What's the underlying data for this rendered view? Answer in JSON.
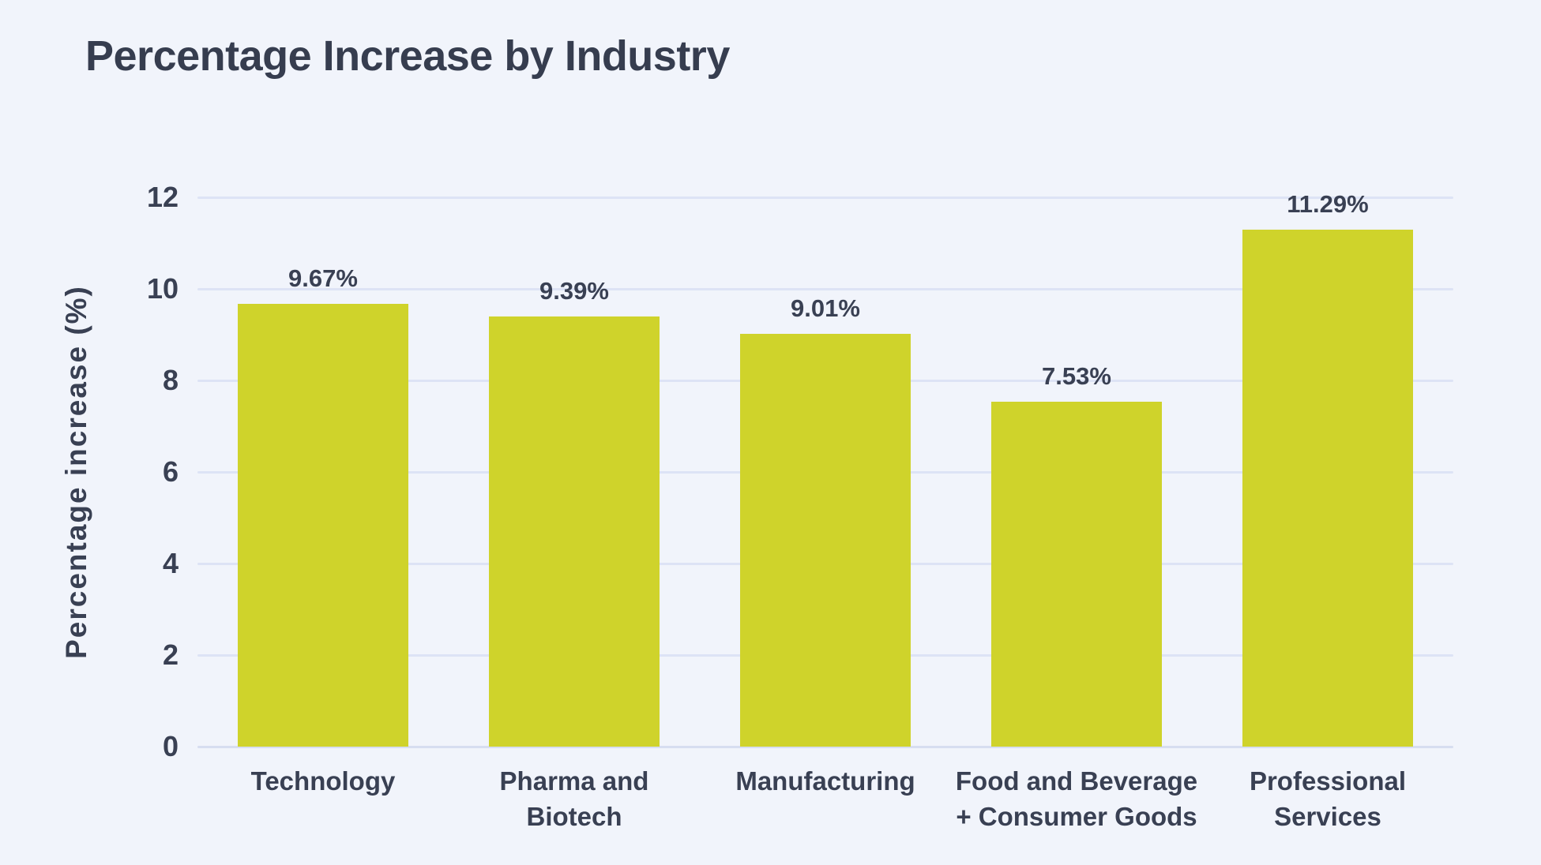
{
  "page": {
    "background_color": "#F1F4FB",
    "text_color": "#394053",
    "title_color": "#363D4F"
  },
  "chart_data": {
    "type": "bar",
    "title": "Percentage Increase by Industry",
    "xlabel": "",
    "ylabel": "Percentage increase (%)",
    "categories": [
      "Technology",
      "Pharma and Biotech",
      "Manufacturing",
      "Food and Beverage\n+ Consumer Goods",
      "Professional\nServices"
    ],
    "values": [
      9.67,
      9.39,
      9.01,
      7.53,
      11.29
    ],
    "value_labels": [
      "9.67%",
      "9.39%",
      "9.01%",
      "7.53%",
      "11.29%"
    ],
    "ylim": [
      0,
      12
    ],
    "yticks": [
      0,
      2,
      4,
      6,
      8,
      10,
      12
    ],
    "grid": "horizontal-on",
    "legend": "none",
    "bar_color": "#CFD32B",
    "gridline_color": "#DDE3F5",
    "background": "#F1F4FB"
  }
}
